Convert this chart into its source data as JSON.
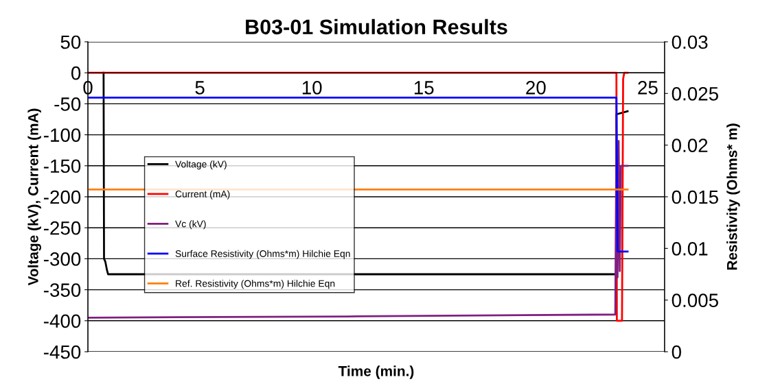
{
  "chart_data": {
    "type": "line",
    "title": "B03-01 Simulation Results",
    "xlabel": "Time (min.)",
    "ylabel": "Voltage (kV), Current (mA)",
    "y2label": "Resistivity (Ohms* m)",
    "xlim": [
      0,
      25.75
    ],
    "xticks": [
      0,
      5,
      10,
      15,
      20,
      25
    ],
    "ylim": [
      -450,
      50
    ],
    "yticks": [
      -450,
      -400,
      -350,
      -300,
      -250,
      -200,
      -150,
      -100,
      -50,
      0,
      50
    ],
    "y2lim": [
      0,
      0.03
    ],
    "y2ticks": [
      0,
      0.005,
      0.01,
      0.015,
      0.02,
      0.025,
      0.03
    ],
    "grid": "y",
    "legend": "left",
    "marker": "none",
    "line_style": "solid",
    "series": [
      {
        "name": "Voltage (kV)",
        "color": "#000000",
        "x": [
          0.7,
          0.72,
          0.78,
          0.85,
          0.9,
          23.6,
          23.6,
          24.1
        ],
        "values": [
          0,
          -300,
          -305,
          -318,
          -325,
          -325,
          -67,
          -62
        ]
      },
      {
        "name": "Current (mA)",
        "color": "#ff0000",
        "x": [
          0,
          23.6,
          23.62,
          23.85,
          23.9,
          23.95,
          24.1
        ],
        "values": [
          0,
          0,
          -400,
          -400,
          -10,
          0,
          0
        ]
      },
      {
        "name": "Vc (kV)",
        "color": "#7f1f7f",
        "x": [
          0,
          12,
          23.55,
          23.6,
          23.65,
          23.7,
          23.75,
          23.8,
          24.1
        ],
        "values": [
          -395,
          -393,
          -390,
          -100,
          -330,
          -110,
          -320,
          -150,
          -150
        ]
      },
      {
        "name": "Surface Resistivity (Ohms*m) Hilchie Eqn",
        "color": "#0000ff",
        "axis": "y2",
        "x": [
          0,
          23.6,
          23.65,
          24.1
        ],
        "values": [
          0.0246,
          0.0246,
          0.0097,
          0.0097
        ]
      },
      {
        "name": "Ref. Resistivity (Ohms*m) Hilchie Eqn",
        "color": "#ff7f0e",
        "axis": "y2",
        "x": [
          0,
          24.1
        ],
        "values": [
          0.0157,
          0.0157
        ]
      }
    ]
  }
}
